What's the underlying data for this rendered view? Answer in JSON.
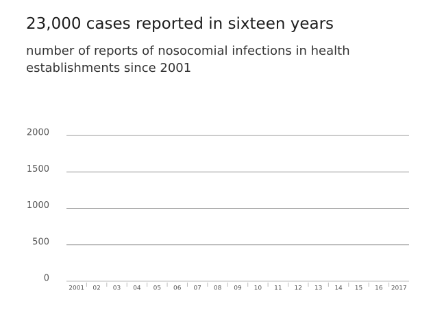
{
  "chart_data": {
    "type": "bar",
    "title": "23,000 cases reported in sixteen years",
    "subtitle": "number of reports of nosocomial infections in health establishments since 2001",
    "categories": [
      "2001",
      "02",
      "03",
      "04",
      "05",
      "06",
      "07",
      "08",
      "09",
      "10",
      "11",
      "12",
      "13",
      "14",
      "15",
      "16",
      "2017"
    ],
    "ylim": [
      0,
      2000
    ],
    "yticks": [
      0,
      500,
      1000,
      1500,
      2000
    ],
    "grid": true
  }
}
